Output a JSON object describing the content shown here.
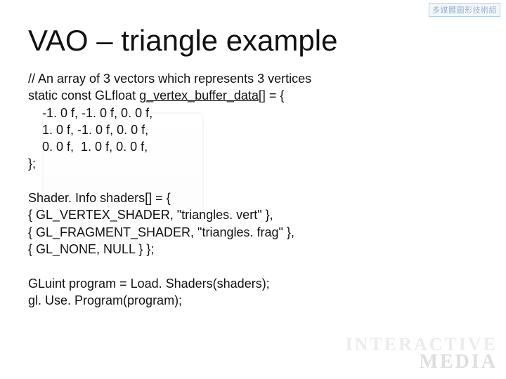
{
  "badge": "多媒體圖形技術組",
  "title": "VAO – triangle example",
  "code_lines": [
    "// An array of 3 vectors which represents 3 vertices",
    "static const GLfloat <u>g_vertex_buffer_data</u>[] = {",
    "    -1. 0 f, -1. 0 f, 0. 0 f,",
    "    1. 0 f, -1. 0 f, 0. 0 f,",
    "    0. 0 f,  1. 0 f, 0. 0 f,",
    "};",
    "",
    "Shader. Info shaders[] = {",
    "{ GL_VERTEX_SHADER, \"triangles. vert\" },",
    "{ GL_FRAGMENT_SHADER, \"triangles. frag\" },",
    "{ GL_NONE, NULL } };",
    "",
    "GLuint program = Load. Shaders(shaders);",
    "gl. Use. Program(program);"
  ],
  "watermark_top": "INTERACTIVE",
  "watermark_bottom": "MEDIA",
  "colors": {
    "text": "#111111",
    "badge_border": "#b8cde0",
    "badge_text": "#9ab3c9",
    "watermark": "#ececec"
  }
}
